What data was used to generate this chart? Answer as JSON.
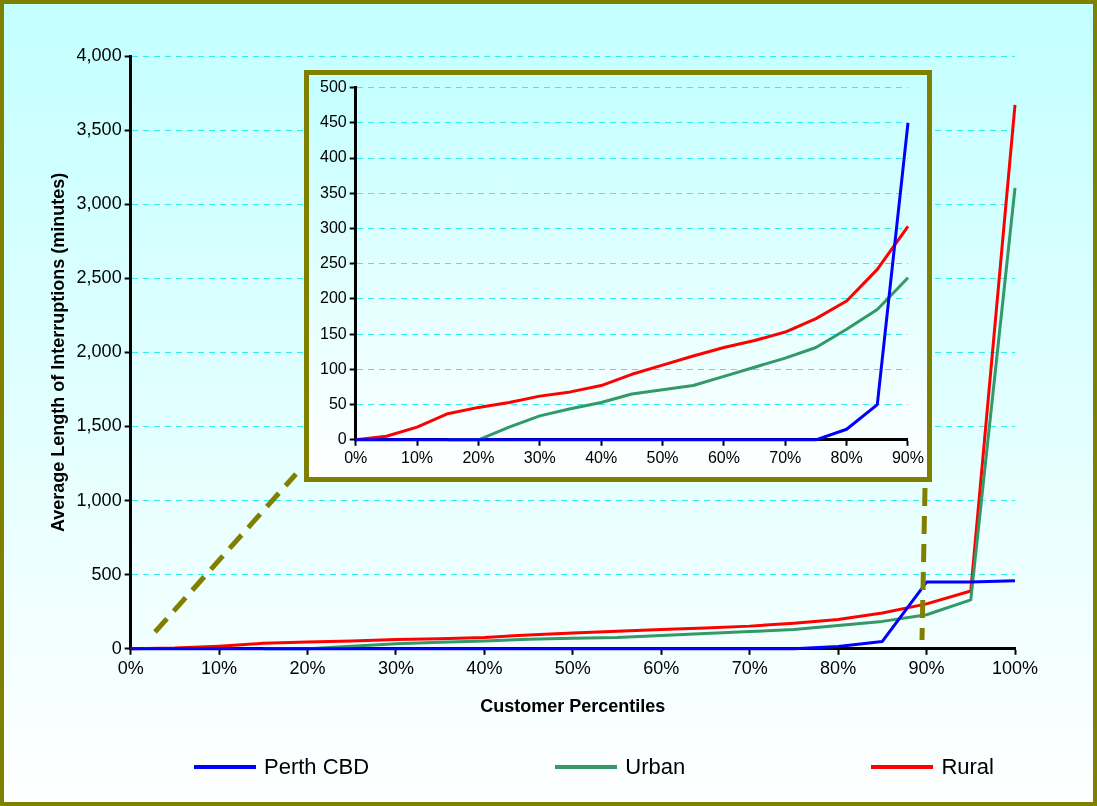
{
  "chart_data": [
    {
      "type": "line",
      "xlabel": "Customer Percentiles",
      "ylabel": "Average Length of Interruptions (minutes)",
      "x": [
        0,
        5,
        10,
        15,
        20,
        25,
        30,
        35,
        40,
        45,
        50,
        55,
        60,
        65,
        70,
        75,
        80,
        85,
        90,
        95,
        100
      ],
      "series": [
        {
          "name": "Perth CBD",
          "color": "#0000ff",
          "values": [
            0,
            0,
            0,
            0,
            0,
            0,
            0,
            0,
            0,
            0,
            0,
            0,
            0,
            0,
            0,
            0,
            15,
            50,
            450,
            450,
            460
          ]
        },
        {
          "name": "Urban",
          "color": "#339966",
          "values": [
            null,
            null,
            null,
            0,
            0,
            18,
            34,
            44,
            53,
            65,
            71,
            77,
            90,
            103,
            116,
            131,
            157,
            185,
            230,
            330,
            3110
          ]
        },
        {
          "name": "Rural",
          "color": "#ff0000",
          "values": [
            0,
            5,
            18,
            37,
            46,
            53,
            62,
            68,
            77,
            93,
            106,
            119,
            131,
            141,
            153,
            172,
            197,
            242,
            303,
            390,
            3670
          ]
        }
      ],
      "xlim": [
        0,
        100
      ],
      "xticks": [
        {
          "value": 0,
          "label": "0%"
        },
        {
          "value": 10,
          "label": "10%"
        },
        {
          "value": 20,
          "label": "20%"
        },
        {
          "value": 30,
          "label": "30%"
        },
        {
          "value": 40,
          "label": "40%"
        },
        {
          "value": 50,
          "label": "50%"
        },
        {
          "value": 60,
          "label": "60%"
        },
        {
          "value": 70,
          "label": "70%"
        },
        {
          "value": 80,
          "label": "80%"
        },
        {
          "value": 90,
          "label": "90%"
        },
        {
          "value": 100,
          "label": "100%"
        }
      ],
      "ylim": [
        0,
        4000
      ],
      "yticks": [
        0,
        500,
        {
          "value": 1000,
          "label": "1,000"
        },
        {
          "value": 1500,
          "label": "1,500"
        },
        {
          "value": 2000,
          "label": "2,000"
        },
        {
          "value": 2500,
          "label": "2,500"
        },
        {
          "value": 3000,
          "label": "3,000"
        },
        {
          "value": 3500,
          "label": "3,500"
        },
        {
          "value": 4000,
          "label": "4,000"
        }
      ],
      "grid": "y",
      "legend": "bottom",
      "marker": "none",
      "line_style": "solid"
    },
    {
      "type": "line",
      "x": [
        0,
        5,
        10,
        15,
        20,
        25,
        30,
        35,
        40,
        45,
        50,
        55,
        60,
        65,
        70,
        75,
        80,
        85,
        90
      ],
      "series": [
        {
          "color": "#0000ff",
          "values": [
            0,
            0,
            0,
            0,
            0,
            0,
            0,
            0,
            0,
            0,
            0,
            0,
            0,
            0,
            0,
            0,
            15,
            50,
            450
          ]
        },
        {
          "color": "#339966",
          "values": [
            null,
            null,
            null,
            0,
            0,
            18,
            34,
            44,
            53,
            65,
            71,
            77,
            90,
            103,
            116,
            131,
            157,
            185,
            230
          ]
        },
        {
          "color": "#ff0000",
          "values": [
            0,
            5,
            18,
            37,
            46,
            53,
            62,
            68,
            77,
            93,
            106,
            119,
            131,
            141,
            153,
            172,
            197,
            242,
            303
          ]
        }
      ],
      "xlim": [
        0,
        90
      ],
      "xticks": [
        {
          "value": 0,
          "label": "0%"
        },
        {
          "value": 10,
          "label": "10%"
        },
        {
          "value": 20,
          "label": "20%"
        },
        {
          "value": 30,
          "label": "30%"
        },
        {
          "value": 40,
          "label": "40%"
        },
        {
          "value": 50,
          "label": "50%"
        },
        {
          "value": 60,
          "label": "60%"
        },
        {
          "value": 70,
          "label": "70%"
        },
        {
          "value": 80,
          "label": "80%"
        },
        {
          "value": 90,
          "label": "90%"
        }
      ],
      "ylim": [
        0,
        500
      ],
      "yticks": [
        0,
        50,
        100,
        150,
        200,
        250,
        300,
        350,
        400,
        450,
        500
      ],
      "grid": "y",
      "marker": "none",
      "line_style": "solid"
    }
  ]
}
